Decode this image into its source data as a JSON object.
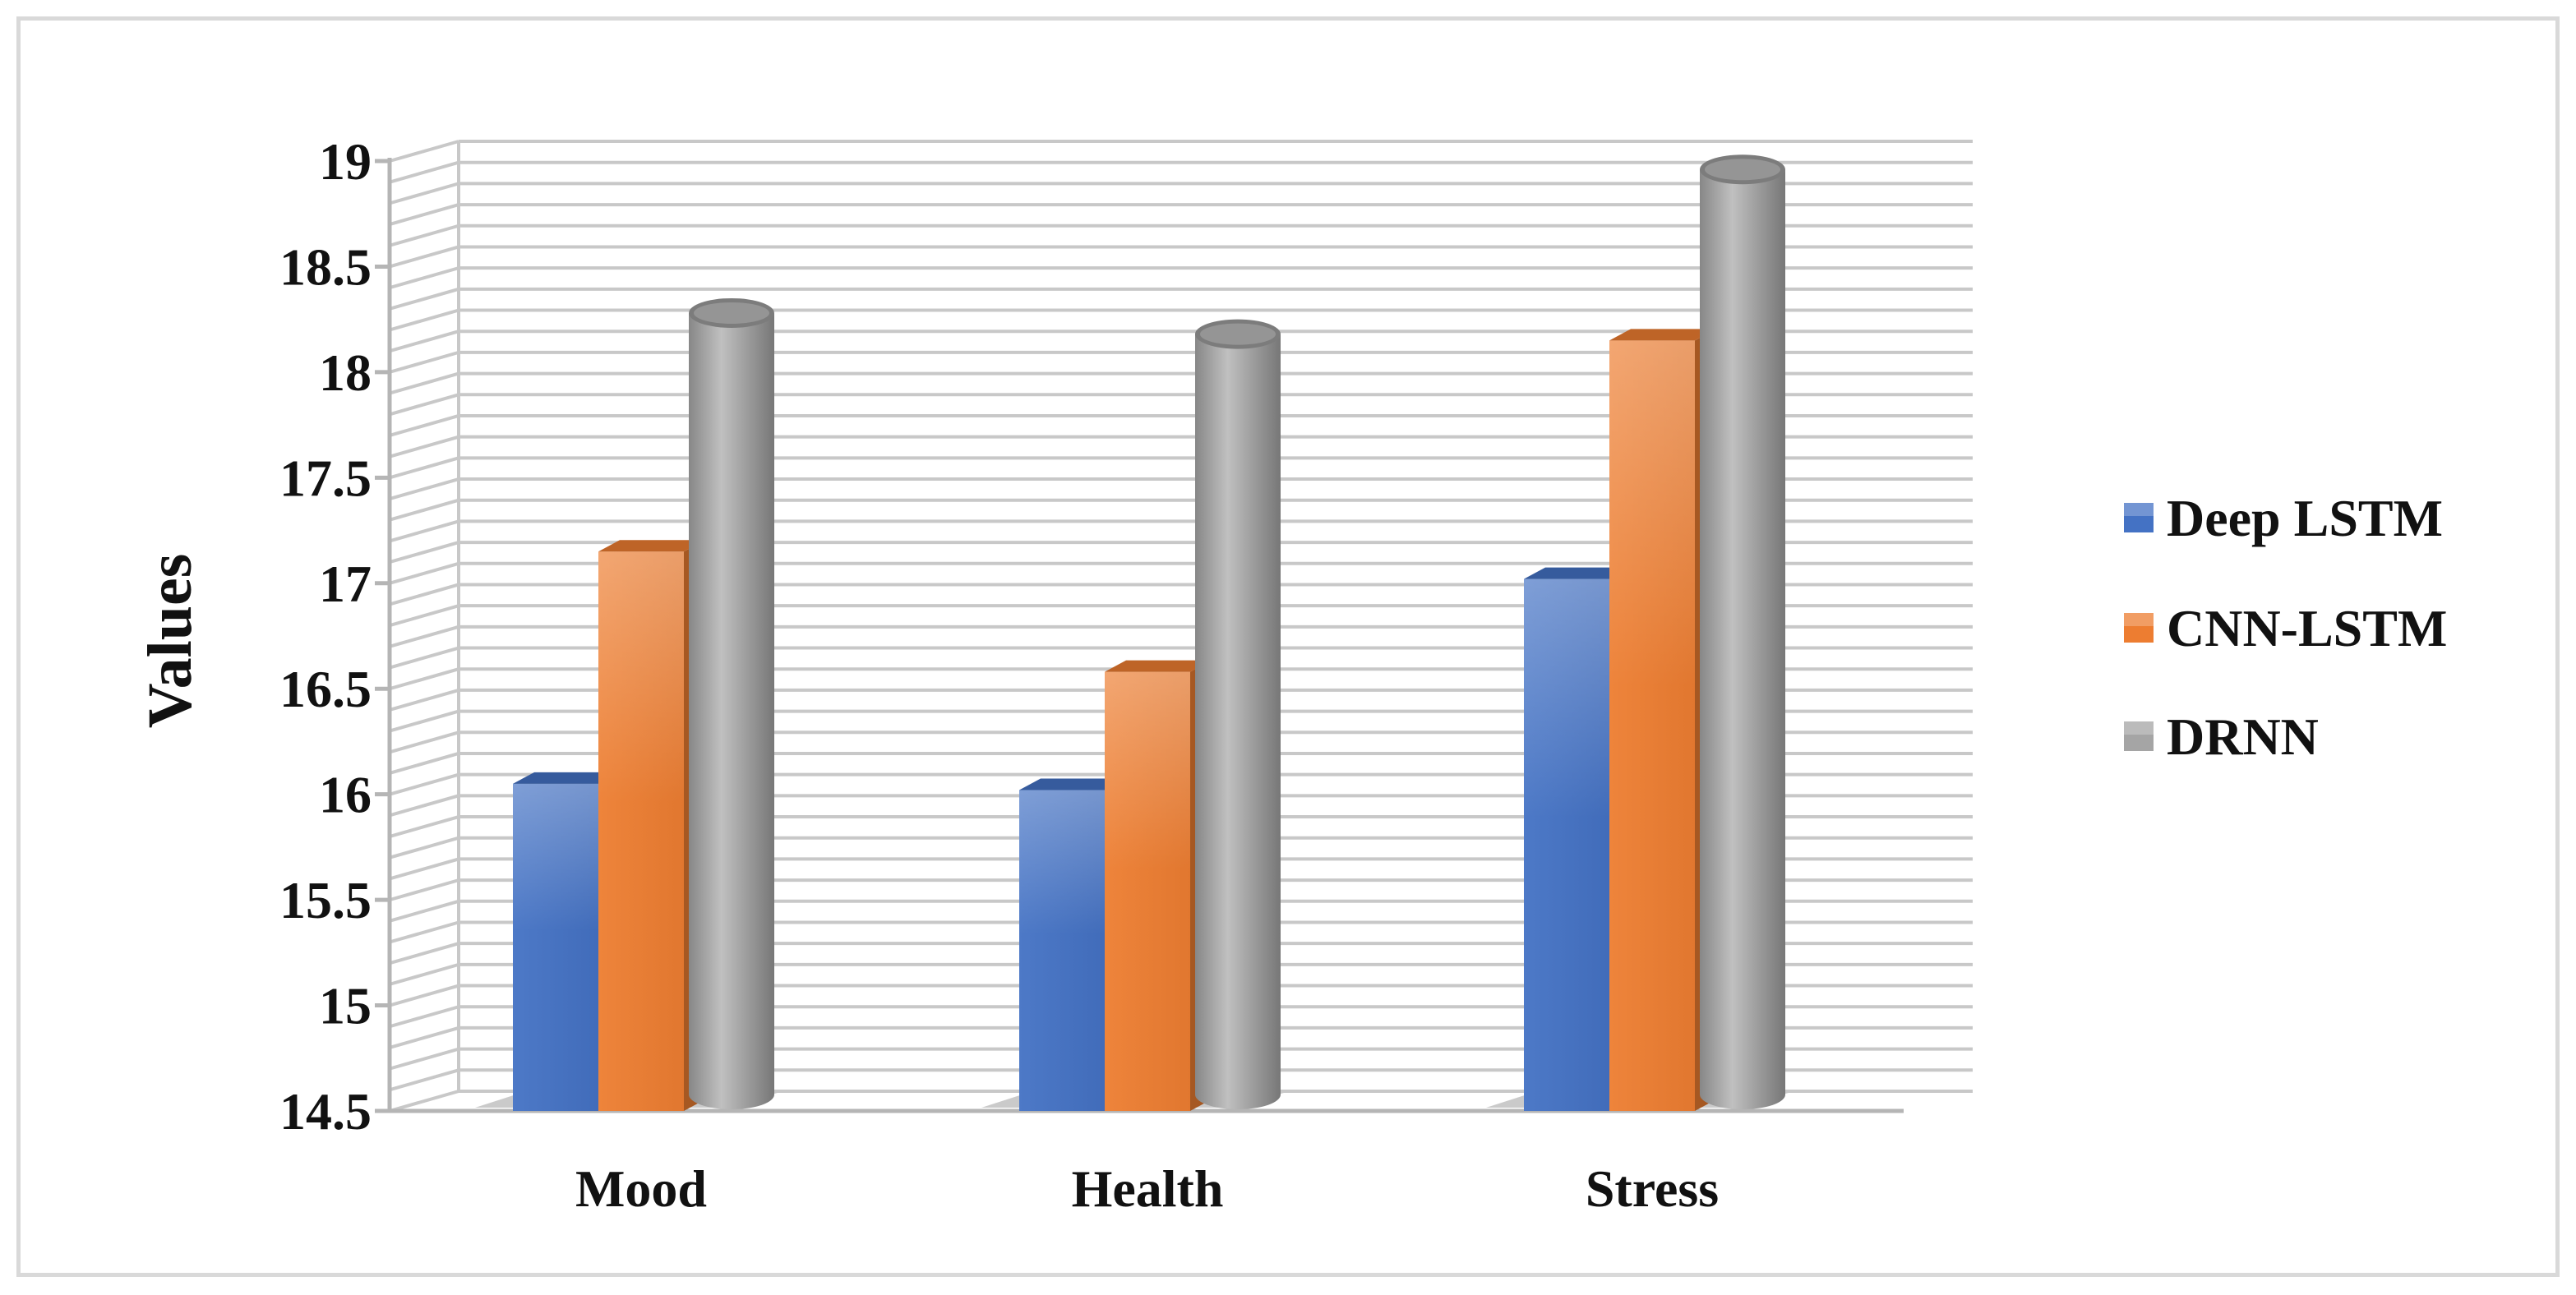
{
  "chart_data": {
    "type": "bar",
    "style": "3d-cylinder",
    "title": "",
    "xlabel": "",
    "ylabel": "Values",
    "ylim": [
      14.5,
      19
    ],
    "yticks": [
      "14.5",
      "15",
      "15.5",
      "16",
      "16.5",
      "17",
      "17.5",
      "18",
      "18.5",
      "19"
    ],
    "categories": [
      "Mood",
      "Health",
      "Stress"
    ],
    "series": [
      {
        "name": "Deep LSTM",
        "shape": "box",
        "color": "#4472c4",
        "values": [
          16.05,
          16.02,
          17.02
        ]
      },
      {
        "name": "CNN-LSTM",
        "shape": "box",
        "color": "#ed7d31",
        "values": [
          17.15,
          16.58,
          18.15
        ]
      },
      {
        "name": "DRNN",
        "shape": "cylinder",
        "color": "#a5a5a5",
        "values": [
          18.28,
          18.18,
          18.96
        ]
      }
    ],
    "grid": true,
    "legend": "right"
  }
}
